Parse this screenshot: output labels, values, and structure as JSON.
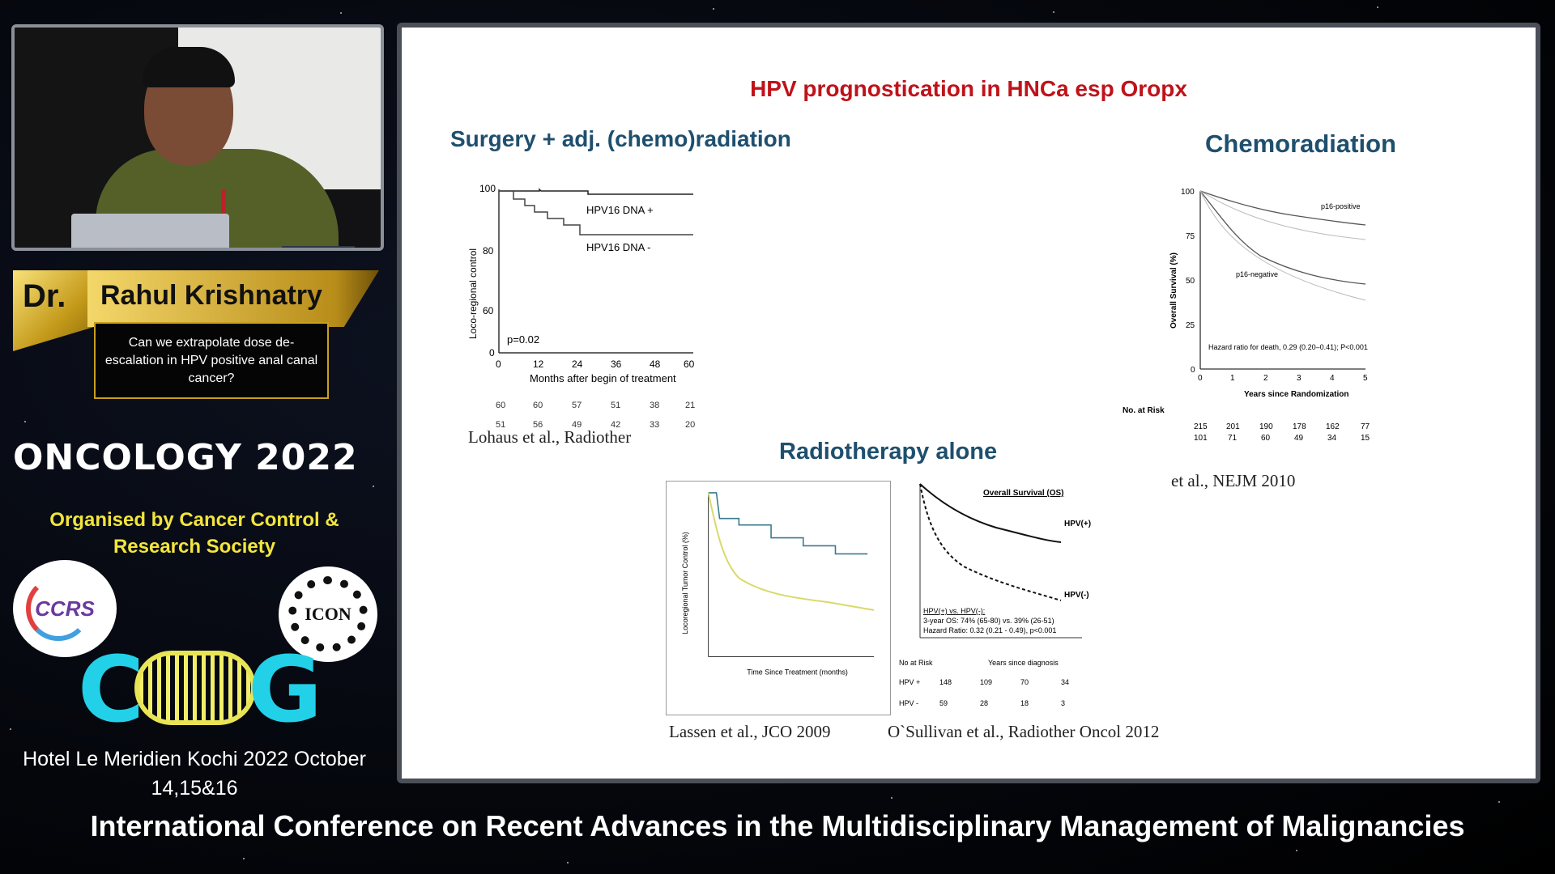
{
  "speaker": {
    "prefix": "Dr.",
    "name": "Rahul Krishnatry",
    "talk_title": "Can we extrapolate dose de-escalation in HPV positive anal canal cancer?"
  },
  "event": {
    "name": "ONCOLOGY 2022",
    "organised_by": "Organised by   Cancer Control & Research Society",
    "logo_left": "CCRS",
    "logo_right": "ICON",
    "logo_bottom": "COOG",
    "venue_line1": "Hotel Le Meridien  Kochi  2022 October",
    "venue_line2": "14,15&16",
    "footer": "International Conference on Recent Advances in the Multidisciplinary Management of Malignancies"
  },
  "slide": {
    "title": "HPV prognostication in HNCa esp Oropx",
    "panel1": {
      "heading": "Surgery + adj. (chemo)radiation",
      "ylabel": "Loco-regional control",
      "xlabel": "Months after begin of treatment",
      "series_pos": "HPV16 DNA +",
      "series_neg": "HPV16 DNA -",
      "pvalue": "p=0.02",
      "yticks": [
        "100",
        "80",
        "60",
        "0"
      ],
      "xticks": [
        "0",
        "12",
        "24",
        "36",
        "48",
        "60"
      ],
      "risk_pos": [
        "60",
        "60",
        "57",
        "51",
        "38",
        "21"
      ],
      "risk_neg": [
        "51",
        "56",
        "49",
        "42",
        "33",
        "20"
      ],
      "citation": "Lohaus et al., Radiother"
    },
    "panel2": {
      "heading": "Chemoradiation",
      "ylabel": "Overall Survival (%)",
      "xlabel": "Years since Randomization",
      "series_pos": "p16-positive",
      "series_neg": "p16-negative",
      "hazard": "Hazard ratio for death, 0.29 (0.20–0.41); P<0.001",
      "yticks": [
        "100",
        "75",
        "50",
        "25",
        "0"
      ],
      "xticks": [
        "0",
        "1",
        "2",
        "3",
        "4",
        "5"
      ],
      "at_risk_label": "No. at Risk",
      "risk_pos": [
        "215",
        "201",
        "190",
        "178",
        "162",
        "77"
      ],
      "risk_neg": [
        "101",
        "71",
        "60",
        "49",
        "34",
        "15"
      ],
      "citation": "et al., NEJM 2010"
    },
    "panel3": {
      "heading": "Radiotherapy alone",
      "left_ylabel": "Locoregional Tumor Control (%)",
      "left_xlabel": "Time Since Treatment (months)",
      "left_citation": "Lassen et al., JCO 2009",
      "right_title": "Overall Survival (OS)",
      "right_series_pos": "HPV(+)",
      "right_series_neg": "HPV(-)",
      "right_stats_1": "HPV(+) vs. HPV(-):",
      "right_stats_2": "3-year OS: 74% (65-80) vs. 39% (26-51)",
      "right_stats_3": "Hazard Ratio: 0.32 (0.21 - 0.49), p<0.001",
      "right_xlabel": "Years since diagnosis",
      "right_at_risk": "No at Risk",
      "right_risk_pos_label": "HPV +",
      "right_risk_pos": [
        "148",
        "109",
        "70",
        "34"
      ],
      "right_risk_neg_label": "HPV -",
      "right_risk_neg": [
        "59",
        "28",
        "18",
        "3"
      ],
      "right_citation": "O`Sullivan et al., Radiother Oncol 2012"
    }
  },
  "colors": {
    "slide_title": "#c0121a",
    "heading": "#1e4f6e",
    "banner_gold": "#c8a020",
    "organiser_yellow": "#f2e53c",
    "coog_cyan": "#22d0e8"
  }
}
